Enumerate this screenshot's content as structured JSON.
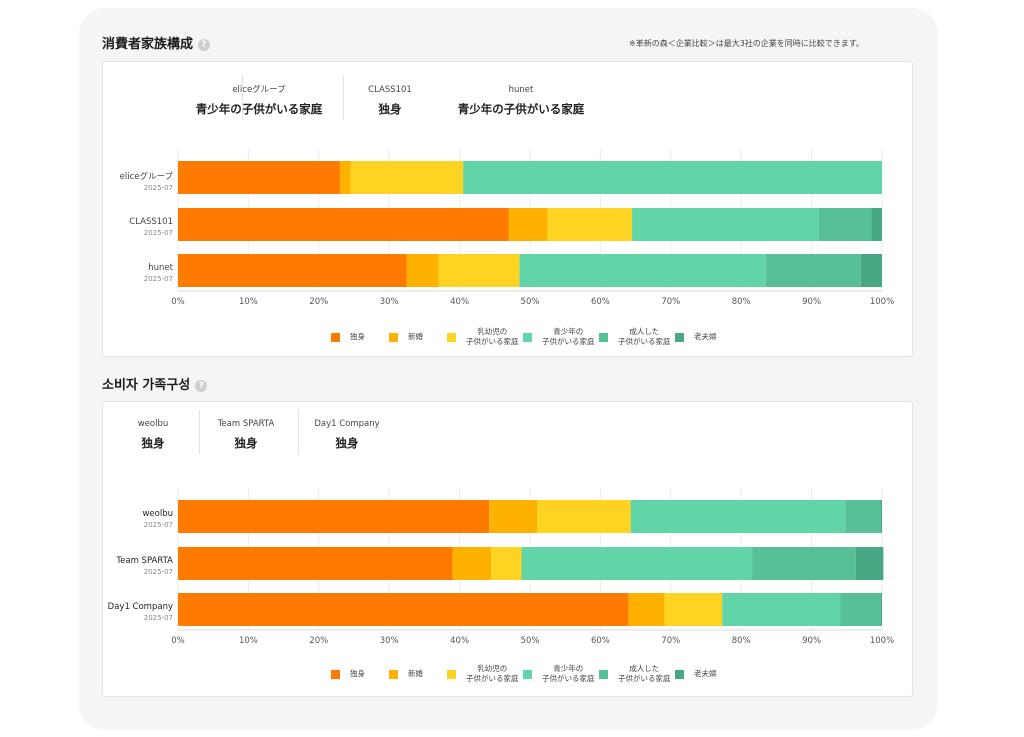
{
  "note": "※革新の森＜企業比較＞は最大3社の企業を同時に比較できます。",
  "colors": {
    "独身": "#ff7a00",
    "新婚": "#ffb100",
    "乳幼児": "#ffd321",
    "青少年": "#62d5a8",
    "成人": "#58c096",
    "老夫婦": "#47a883"
  },
  "sections": [
    {
      "title": "消費者家族構成",
      "companies": [
        {
          "name": "eliceグループ",
          "value": "青少年の子供がいる家庭"
        },
        {
          "name": "CLASS101",
          "value": "独身"
        },
        {
          "name": "hunet",
          "value": "青少年の子供がいる家庭"
        }
      ],
      "legend": [
        {
          "key": "独身",
          "lines": [
            "独身"
          ]
        },
        {
          "key": "新婚",
          "lines": [
            "新婚"
          ]
        },
        {
          "key": "乳幼児",
          "lines": [
            "乳幼児の",
            "子供がいる家庭"
          ]
        },
        {
          "key": "青少年",
          "lines": [
            "青少年の",
            "子供がいる家庭"
          ]
        },
        {
          "key": "成人",
          "lines": [
            "成人した",
            "子供がいる家庭"
          ]
        },
        {
          "key": "老夫婦",
          "lines": [
            "老夫婦"
          ]
        }
      ]
    },
    {
      "title": "소비자 가족구성",
      "companies": [
        {
          "name": "weolbu",
          "value": "独身"
        },
        {
          "name": "Team SPARTA",
          "value": "独身"
        },
        {
          "name": "Day1 Company",
          "value": "独身"
        }
      ],
      "legend": [
        {
          "key": "独身",
          "lines": [
            "独身"
          ]
        },
        {
          "key": "新婚",
          "lines": [
            "新婚"
          ]
        },
        {
          "key": "乳幼児",
          "lines": [
            "乳幼児の",
            "子供がいる家庭"
          ]
        },
        {
          "key": "青少年",
          "lines": [
            "青少年の",
            "子供がいる家庭"
          ]
        },
        {
          "key": "成人",
          "lines": [
            "成人した",
            "子供がいる家庭"
          ]
        },
        {
          "key": "老夫婦",
          "lines": [
            "老夫婦"
          ]
        }
      ]
    }
  ],
  "chart_data": [
    {
      "type": "bar",
      "orientation": "horizontal",
      "stacked": true,
      "categories": [
        {
          "name": "eliceグループ",
          "date": "2025-07"
        },
        {
          "name": "CLASS101",
          "date": "2025-07"
        },
        {
          "name": "hunet",
          "date": "2025-07"
        }
      ],
      "series": [
        {
          "name": "独身",
          "values": [
            23,
            47,
            32.5
          ]
        },
        {
          "name": "新婚",
          "values": [
            1.5,
            5.5,
            4.5
          ]
        },
        {
          "name": "乳幼児の子供がいる家庭",
          "values": [
            16,
            12,
            11.5
          ]
        },
        {
          "name": "青少年の子供がいる家庭",
          "values": [
            59.5,
            26.5,
            35
          ]
        },
        {
          "name": "成人した子供がいる家庭",
          "values": [
            0,
            7.5,
            13.5
          ]
        },
        {
          "name": "老夫婦",
          "values": [
            0,
            1.5,
            3
          ]
        }
      ],
      "xlim": [
        0,
        100
      ],
      "xticks": [
        "0%",
        "10%",
        "20%",
        "30%",
        "40%",
        "50%",
        "60%",
        "70%",
        "80%",
        "90%",
        "100%"
      ],
      "grid": true,
      "legend": "bottom"
    },
    {
      "type": "bar",
      "orientation": "horizontal",
      "stacked": true,
      "categories": [
        {
          "name": "weolbu",
          "date": "2025-07"
        },
        {
          "name": "Team SPARTA",
          "date": "2025-07"
        },
        {
          "name": "Day1 Company",
          "date": "2025-07"
        }
      ],
      "series": [
        {
          "name": "独身",
          "values": [
            44.2,
            39,
            64
          ]
        },
        {
          "name": "新婚",
          "values": [
            6.8,
            5.5,
            5.1
          ]
        },
        {
          "name": "乳幼児の子供がいる家庭",
          "values": [
            13.3,
            4.3,
            8.2
          ]
        },
        {
          "name": "青少年の子供がいる家庭",
          "values": [
            30.5,
            32.8,
            16.8
          ]
        },
        {
          "name": "成人した子供がいる家庭",
          "values": [
            5,
            14.7,
            5.7
          ]
        },
        {
          "name": "老夫婦",
          "values": [
            0.2,
            3.9,
            0.2
          ]
        }
      ],
      "xlim": [
        0,
        100
      ],
      "xticks": [
        "0%",
        "10%",
        "20%",
        "30%",
        "40%",
        "50%",
        "60%",
        "70%",
        "80%",
        "90%",
        "100%"
      ],
      "grid": true,
      "legend": "bottom"
    }
  ]
}
